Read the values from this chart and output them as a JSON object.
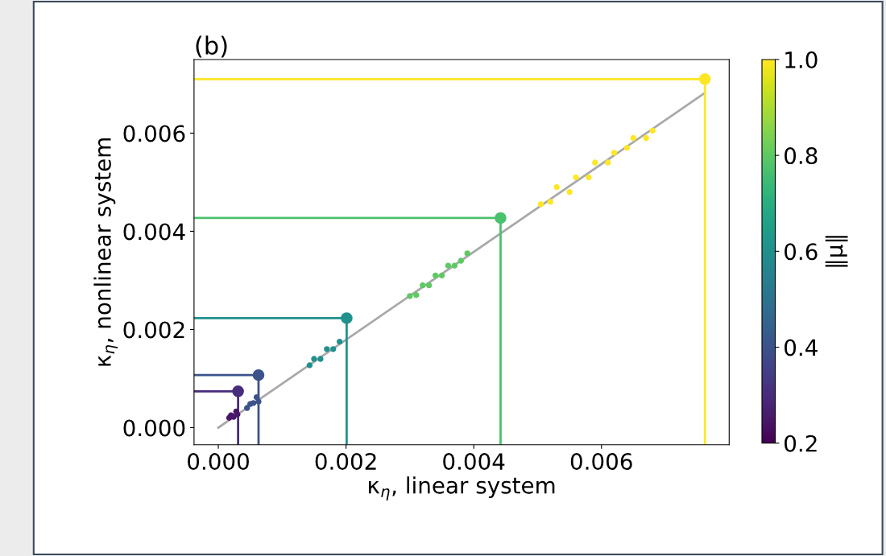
{
  "chart_data": {
    "type": "scatter",
    "title": "(b)",
    "xlabel": "κ$_{η}$, linear system",
    "ylabel": "κ$_{η}$, nonlinear system",
    "clabel": "‖μ‖",
    "xlim": [
      -0.00038,
      0.008
    ],
    "ylim": [
      -0.00035,
      0.0075
    ],
    "xticks": [
      {
        "value": 0,
        "label": "0.000"
      },
      {
        "value": 0.002,
        "label": "0.002"
      },
      {
        "value": 0.004,
        "label": "0.004"
      },
      {
        "value": 0.006,
        "label": "0.006"
      }
    ],
    "yticks": [
      {
        "value": 0,
        "label": "0.000"
      },
      {
        "value": 0.002,
        "label": "0.002"
      },
      {
        "value": 0.004,
        "label": "0.004"
      },
      {
        "value": 0.006,
        "label": "0.006"
      }
    ],
    "clim": [
      0.2,
      1.0
    ],
    "cticks": [
      {
        "value": 0.2,
        "label": "0.2"
      },
      {
        "value": 0.4,
        "label": "0.4"
      },
      {
        "value": 0.6,
        "label": "0.6"
      },
      {
        "value": 0.8,
        "label": "0.8"
      },
      {
        "value": 1.0,
        "label": "1.0"
      }
    ],
    "grid": false,
    "legend": false,
    "series": [
      {
        "type": "line",
        "color": "#a9a9a9",
        "x": [
          0,
          0.00762
        ],
        "values": [
          0,
          0.00682
        ]
      },
      {
        "type": "line",
        "color": "#fde725",
        "x": [
          -0.00038,
          0.00762,
          0.00762
        ],
        "values": [
          0.0071,
          0.0071,
          -0.00035
        ]
      },
      {
        "type": "line",
        "color": "#4ac16d",
        "x": [
          -0.00038,
          0.00442,
          0.00442
        ],
        "values": [
          0.00427,
          0.00427,
          -0.00035
        ]
      },
      {
        "type": "line",
        "color": "#21918c",
        "x": [
          -0.00038,
          0.00201,
          0.00201
        ],
        "values": [
          0.00223,
          0.00223,
          -0.00035
        ]
      },
      {
        "type": "line",
        "color": "#3b528b",
        "x": [
          -0.00038,
          0.00063,
          0.00063
        ],
        "values": [
          0.00107,
          0.00107,
          -0.00035
        ]
      },
      {
        "type": "line",
        "color": "#472d7b",
        "x": [
          -0.00038,
          0.00031,
          0.00031
        ],
        "values": [
          0.00074,
          0.00074,
          -0.00035
        ]
      },
      {
        "type": "scatter",
        "x": [
          0.00505,
          0.0052,
          0.0053,
          0.0055,
          0.0056,
          0.0058,
          0.0059,
          0.0061,
          0.0062,
          0.0064,
          0.0065,
          0.0067,
          0.0068
        ],
        "values": [
          0.00455,
          0.0046,
          0.0049,
          0.0048,
          0.0051,
          0.0051,
          0.0054,
          0.0054,
          0.0056,
          0.0057,
          0.0059,
          0.0059,
          0.00605
        ],
        "cvalues": [
          1.0,
          1.0,
          1.0,
          1.0,
          1.0,
          1.0,
          1.0,
          1.0,
          1.0,
          1.0,
          1.0,
          1.0,
          1.0
        ]
      },
      {
        "type": "scatter",
        "x": [
          0.003,
          0.0031,
          0.0032,
          0.0033,
          0.0034,
          0.0035,
          0.0036,
          0.0037,
          0.0038,
          0.0039
        ],
        "values": [
          0.00268,
          0.0027,
          0.0029,
          0.0029,
          0.0031,
          0.0031,
          0.0033,
          0.0033,
          0.0034,
          0.00355
        ],
        "cvalues": [
          0.8,
          0.8,
          0.8,
          0.8,
          0.8,
          0.8,
          0.8,
          0.8,
          0.8,
          0.8
        ]
      },
      {
        "type": "scatter",
        "x": [
          0.00143,
          0.0015,
          0.0016,
          0.0017,
          0.0018,
          0.0019
        ],
        "values": [
          0.00127,
          0.0014,
          0.0014,
          0.0016,
          0.0016,
          0.00175
        ],
        "cvalues": [
          0.6,
          0.6,
          0.6,
          0.6,
          0.6,
          0.6
        ]
      },
      {
        "type": "scatter",
        "x": [
          0.00045,
          0.0005,
          0.00055,
          0.0006,
          0.00063
        ],
        "values": [
          0.0004,
          0.00048,
          0.0005,
          0.00062,
          0.00053
        ],
        "cvalues": [
          0.4,
          0.4,
          0.4,
          0.4,
          0.4
        ]
      },
      {
        "type": "scatter",
        "x": [
          0.00017,
          0.0002,
          0.00024,
          0.00028,
          0.0003
        ],
        "values": [
          0.0002,
          0.00025,
          0.00022,
          0.00033,
          0.00027
        ],
        "cvalues": [
          0.25,
          0.25,
          0.25,
          0.25,
          0.25
        ]
      },
      {
        "marker": "circle",
        "x": [
          0.00762,
          0.00442,
          0.00201,
          0.00063,
          0.00031
        ],
        "values": [
          0.0071,
          0.00427,
          0.00223,
          0.00107,
          0.00074
        ],
        "colors": [
          "#fde725",
          "#4ac16d",
          "#21918c",
          "#3b528b",
          "#472d7b"
        ]
      }
    ]
  }
}
